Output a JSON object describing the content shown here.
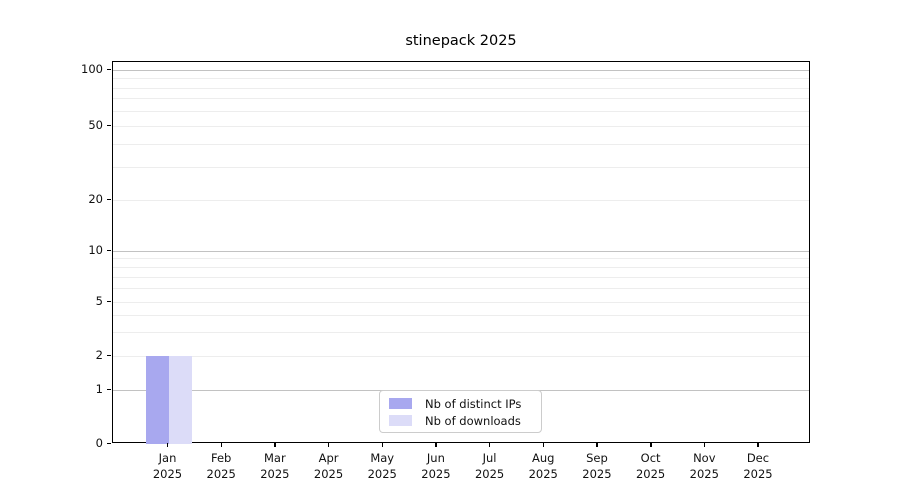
{
  "title": "stinepack 2025",
  "chart_data": {
    "type": "bar",
    "title": "stinepack 2025",
    "categories": [
      "Jan",
      "Feb",
      "Mar",
      "Apr",
      "May",
      "Jun",
      "Jul",
      "Aug",
      "Sep",
      "Oct",
      "Nov",
      "Dec"
    ],
    "category_year": "2025",
    "series": [
      {
        "name": "Nb of distinct IPs",
        "color": "#a8a8ef",
        "values": [
          2,
          0,
          0,
          0,
          0,
          0,
          0,
          0,
          0,
          0,
          0,
          0
        ]
      },
      {
        "name": "Nb of downloads",
        "color": "#dcdcf8",
        "values": [
          2,
          0,
          0,
          0,
          0,
          0,
          0,
          0,
          0,
          0,
          0,
          0
        ]
      }
    ],
    "xlabel": "",
    "ylabel": "",
    "yscale": "symlog",
    "y_tick_labels": [
      0,
      1,
      2,
      5,
      10,
      20,
      50,
      100
    ],
    "y_minor_gridlines": [
      2,
      3,
      4,
      5,
      6,
      7,
      8,
      9,
      20,
      30,
      40,
      50,
      60,
      70,
      80,
      90
    ],
    "y_major_gridlines": [
      1,
      10,
      100
    ],
    "ylim": [
      0,
      110
    ],
    "grid": true,
    "legend_position": "lower-center"
  }
}
